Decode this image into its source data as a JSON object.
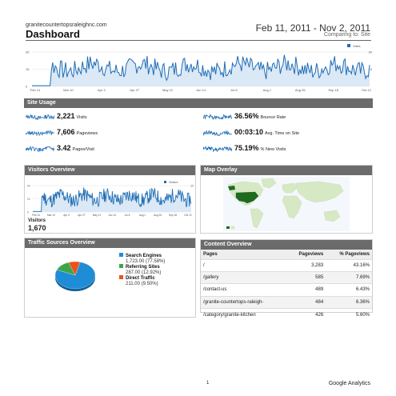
{
  "header": {
    "site": "granitecountertopsraleighnc.com",
    "title": "Dashboard",
    "date_range": "Feb 11, 2011 - Nov 2, 2011",
    "comparison": "Comparing to: Site"
  },
  "main_chart": {
    "legend": "Visits",
    "y_left": [
      "30",
      "15",
      "0"
    ],
    "y_right": [
      "30",
      "15"
    ],
    "x_labels": [
      "Feb 14",
      "Mar 10",
      "Apr 3",
      "Apr 27",
      "May 21",
      "Jun 14",
      "Jul 8",
      "Aug 1",
      "Aug 25",
      "Sep 18",
      "Oct 12"
    ],
    "color": "#1f6db5"
  },
  "site_usage": {
    "heading": "Site Usage",
    "metrics": [
      {
        "value": "2,221",
        "label": "Visits"
      },
      {
        "value": "7,606",
        "label": "Pageviews"
      },
      {
        "value": "3.42",
        "label": "Pages/Visit"
      },
      {
        "value": "36.56%",
        "label": "Bounce Rate"
      },
      {
        "value": "00:03:10",
        "label": "Avg. Time on Site"
      },
      {
        "value": "75.19%",
        "label": "% New Visits"
      }
    ]
  },
  "visitors_overview": {
    "heading": "Visitors Overview",
    "legend": "Visitors",
    "y_left": [
      "20",
      "10",
      "0"
    ],
    "y_right": [
      "20"
    ],
    "x_labels": [
      "Feb 14",
      "Mar 10",
      "Apr 3",
      "Apr 27",
      "May 21",
      "Jun 14",
      "Jul 8",
      "Aug 1",
      "Aug 25",
      "Sep 18",
      "Oct 12"
    ],
    "total_label": "Visitors",
    "total_value": "1,670"
  },
  "map_overlay": {
    "heading": "Map Overlay",
    "land_color": "#d6e8c4",
    "highlight_color": "#1e6b1e"
  },
  "traffic_sources": {
    "heading": "Traffic Sources Overview",
    "items": [
      {
        "name": "Search Engines",
        "detail": "1,723.00 (77.58%)",
        "fraction": 0.7758,
        "color": "#1f8dd6"
      },
      {
        "name": "Referring Sites",
        "detail": "287.00 (12.92%)",
        "fraction": 0.1292,
        "color": "#3aa64a"
      },
      {
        "name": "Direct Traffic",
        "detail": "211.00 (9.50%)",
        "fraction": 0.095,
        "color": "#e8531e"
      }
    ]
  },
  "content_overview": {
    "heading": "Content Overview",
    "columns": [
      "Pages",
      "Pageviews",
      "% Pageviews"
    ],
    "rows": [
      {
        "page": "/",
        "pageviews": "3,283",
        "pct": "43.16%"
      },
      {
        "page": "/gallery",
        "pageviews": "585",
        "pct": "7.69%"
      },
      {
        "page": "/contact-us",
        "pageviews": "489",
        "pct": "6.43%"
      },
      {
        "page": "/granite-countertops-raleigh-",
        "pageviews": "484",
        "pct": "6.36%"
      },
      {
        "page": "/category/granite-kitchen",
        "pageviews": "426",
        "pct": "5.60%"
      }
    ]
  },
  "footer": {
    "page_number": "1",
    "brand": "Google Analytics"
  }
}
